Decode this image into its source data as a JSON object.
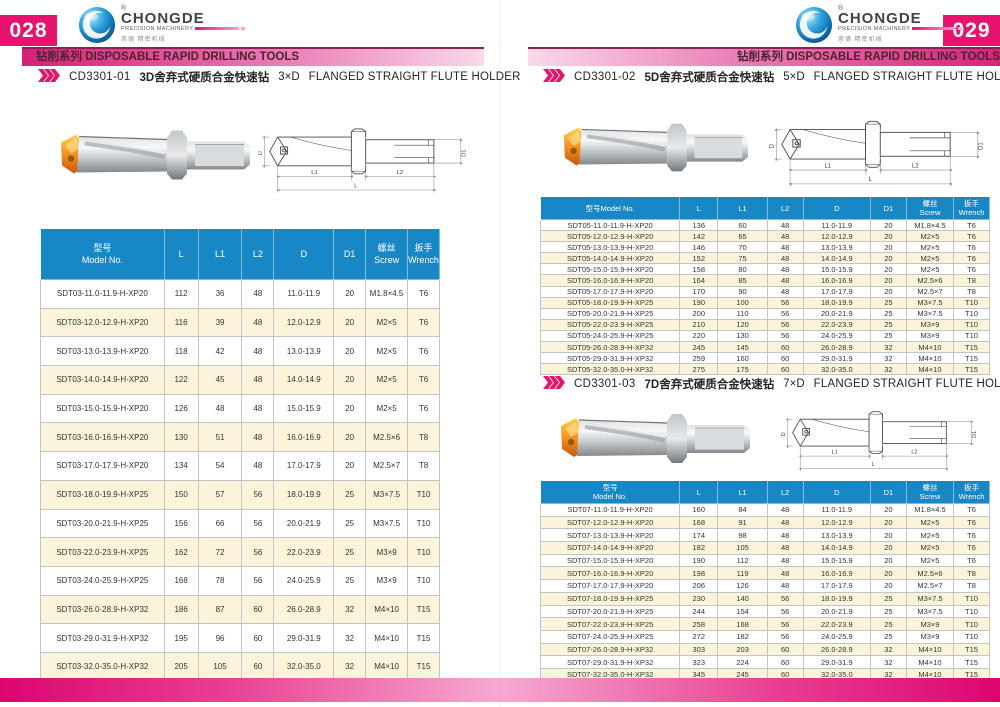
{
  "brand": {
    "name": "CHONGDE",
    "tagline": "PRECISION MACHINERY",
    "cn_name": "崇德 精密机械",
    "registered_mark": "®"
  },
  "series_bar_text": "钻削系列 DISPOSABLE RAPID DRILLING TOOLS",
  "left_page": {
    "number": "028"
  },
  "right_page": {
    "number": "029"
  },
  "products": {
    "p1": {
      "code": "CD3301-01",
      "name_cn": "3D舍弃式硬质合金快速钻",
      "size": "3×D",
      "name_en": "FLANGED STRAIGHT FLUTE HOLDER"
    },
    "p2": {
      "code": "CD3301-02",
      "name_cn": "5D舍弃式硬质合金快速钻",
      "size": "5×D",
      "name_en": "FLANGED STRAIGHT FLUTE HOLDER"
    },
    "p3": {
      "code": "CD3301-03",
      "name_cn": "7D舍弃式硬质合金快速钻",
      "size": "7×D",
      "name_en": "FLANGED STRAIGHT FLUTE HOLDER"
    }
  },
  "drawing_labels": {
    "d": "D",
    "d1": "D1",
    "l1": "L1",
    "l2": "L2",
    "l": "L"
  },
  "colors": {
    "magenta": "#e7136f",
    "table_header_blue": "#1787c5",
    "row_cream": "#fbf4da",
    "insert_orange": "#f08c1a"
  },
  "tables": {
    "t3d": {
      "headers": [
        "型号\nModel No.",
        "L",
        "L1",
        "L2",
        "D",
        "D1",
        "螺丝Screw",
        "扳手\nWrench"
      ],
      "rows": [
        [
          "SDT03-11.0-11.9-H-XP20",
          "112",
          "36",
          "48",
          "11.0-11.9",
          "20",
          "M1.8×4.5",
          "T6"
        ],
        [
          "SDT03-12.0-12.9-H-XP20",
          "116",
          "39",
          "48",
          "12.0-12.9",
          "20",
          "M2×5",
          "T6"
        ],
        [
          "SDT03-13.0-13.9-H-XP20",
          "118",
          "42",
          "48",
          "13.0-13.9",
          "20",
          "M2×5",
          "T6"
        ],
        [
          "SDT03-14.0-14.9-H-XP20",
          "122",
          "45",
          "48",
          "14.0-14.9",
          "20",
          "M2×5",
          "T6"
        ],
        [
          "SDT03-15.0-15.9-H-XP20",
          "126",
          "48",
          "48",
          "15.0-15.9",
          "20",
          "M2×5",
          "T6"
        ],
        [
          "SDT03-16.0-16.9-H-XP20",
          "130",
          "51",
          "48",
          "16.0-16.9",
          "20",
          "M2.5×6",
          "T8"
        ],
        [
          "SDT03-17.0-17.9-H-XP20",
          "134",
          "54",
          "48",
          "17.0-17.9",
          "20",
          "M2.5×7",
          "T8"
        ],
        [
          "SDT03-18.0-19.9-H-XP25",
          "150",
          "57",
          "56",
          "18.0-19.9",
          "25",
          "M3×7.5",
          "T10"
        ],
        [
          "SDT03-20.0-21.9-H-XP25",
          "156",
          "66",
          "56",
          "20.0-21.9",
          "25",
          "M3×7.5",
          "T10"
        ],
        [
          "SDT03-22.0-23.9-H-XP25",
          "162",
          "72",
          "56",
          "22.0-23.9",
          "25",
          "M3×9",
          "T10"
        ],
        [
          "SDT03-24.0-25.9-H-XP25",
          "168",
          "78",
          "56",
          "24.0-25.9",
          "25",
          "M3×9",
          "T10"
        ],
        [
          "SDT03-26.0-28.9-H-XP32",
          "186",
          "87",
          "60",
          "26.0-28.9",
          "32",
          "M4×10",
          "T15"
        ],
        [
          "SDT03-29.0-31.9-H-XP32",
          "195",
          "96",
          "60",
          "29.0-31.9",
          "32",
          "M4×10",
          "T15"
        ],
        [
          "SDT03-32.0-35.0-H-XP32",
          "205",
          "105",
          "60",
          "32.0-35.0",
          "32",
          "M4×10",
          "T15"
        ]
      ]
    },
    "t5d": {
      "headers": [
        "型号Model No.",
        "L",
        "L1",
        "L2",
        "D",
        "D1",
        "螺丝\nScrew",
        "扳手Wrench"
      ],
      "rows": [
        [
          "SDT05-11.0-11.9-H-XP20",
          "136",
          "60",
          "48",
          "11.0-11.9",
          "20",
          "M1.8×4.5",
          "T6"
        ],
        [
          "SDT05-12.0-12.9-H-XP20",
          "142",
          "65",
          "48",
          "12.0-12.9",
          "20",
          "M2×5",
          "T6"
        ],
        [
          "SDT05-13.0-13.9-H-XP20",
          "146",
          "70",
          "48",
          "13.0-13.9",
          "20",
          "M2×5",
          "T6"
        ],
        [
          "SDT05-14.0-14.9-H-XP20",
          "152",
          "75",
          "48",
          "14.0-14.9",
          "20",
          "M2×5",
          "T6"
        ],
        [
          "SDT05-15.0-15.9-H-XP20",
          "158",
          "80",
          "48",
          "15.0-15.9",
          "20",
          "M2×5",
          "T6"
        ],
        [
          "SDT05-16.0-16.9-H-XP20",
          "164",
          "85",
          "48",
          "16.0-16.9",
          "20",
          "M2.5×6",
          "T8"
        ],
        [
          "SDT05-17.0-17.9-H-XP20",
          "170",
          "90",
          "48",
          "17.0-17.9",
          "20",
          "M2.5×7",
          "T8"
        ],
        [
          "SDT05-18.0-19.9-H-XP25",
          "190",
          "100",
          "56",
          "18.0-19.9",
          "25",
          "M3×7.5",
          "T10"
        ],
        [
          "SDT05-20.0-21.9-H-XP25",
          "200",
          "110",
          "56",
          "20.0-21.9",
          "25",
          "M3×7.5",
          "T10"
        ],
        [
          "SDT05-22.0-23.9-H-XP25",
          "210",
          "120",
          "56",
          "22.0-23.9",
          "25",
          "M3×9",
          "T10"
        ],
        [
          "SDT05-24.0-25.9-H-XP25",
          "220",
          "130",
          "56",
          "24.0-25.9",
          "25",
          "M3×9",
          "T10"
        ],
        [
          "SDT05-26.0-28.9-H-XP32",
          "245",
          "145",
          "60",
          "26.0-28.9",
          "32",
          "M4×10",
          "T15"
        ],
        [
          "SDT05-29.0-31.9-H-XP32",
          "259",
          "160",
          "60",
          "29.0-31.9",
          "32",
          "M4×10",
          "T15"
        ],
        [
          "SDT05-32.0-35.0-H-XP32",
          "275",
          "175",
          "60",
          "32.0-35.0",
          "32",
          "M4×10",
          "T15"
        ]
      ]
    },
    "t7d": {
      "headers": [
        "型号\nModel No.",
        "L",
        "L1",
        "L2",
        "D",
        "D1",
        "螺丝\nScrew",
        "扳手\nWrench"
      ],
      "rows": [
        [
          "SDT07-11.0-11.9-H-XP20",
          "160",
          "84",
          "48",
          "11.0-11.9",
          "20",
          "M1.8×4.5",
          "T6"
        ],
        [
          "SDT07-12.0-12.9-H-XP20",
          "168",
          "91",
          "48",
          "12.0-12.9",
          "20",
          "M2×5",
          "T6"
        ],
        [
          "SDT07-13.0-13.9-H-XP20",
          "174",
          "98",
          "48",
          "13.0-13.9",
          "20",
          "M2×5",
          "T6"
        ],
        [
          "SDT07-14.0-14.9-H-XP20",
          "182",
          "105",
          "48",
          "14.0-14.9",
          "20",
          "M2×5",
          "T6"
        ],
        [
          "SDT07-15.0-15.9-H-XP20",
          "190",
          "112",
          "48",
          "15.0-15.9",
          "20",
          "M2×5",
          "T6"
        ],
        [
          "SDT07-16.0-16.9-H-XP20",
          "198",
          "119",
          "48",
          "16.0-16.9",
          "20",
          "M2.5×6",
          "T8"
        ],
        [
          "SDT07-17.0-17.9-H-XP20",
          "206",
          "126",
          "48",
          "17.0-17.9",
          "20",
          "M2.5×7",
          "T8"
        ],
        [
          "SDT07-18.0-19.9-H-XP25",
          "230",
          "140",
          "56",
          "18.0-19.9",
          "25",
          "M3×7.5",
          "T10"
        ],
        [
          "SDT07-20.0-21.9-H-XP25",
          "244",
          "154",
          "56",
          "20.0-21.9",
          "25",
          "M3×7.5",
          "T10"
        ],
        [
          "SDT07-22.0-23.9-H-XP25",
          "258",
          "168",
          "56",
          "22.0-23.9",
          "25",
          "M3×9",
          "T10"
        ],
        [
          "SDT07-24.0-25.9-H-XP25",
          "272",
          "182",
          "56",
          "24.0-25.9",
          "25",
          "M3×9",
          "T10"
        ],
        [
          "SDT07-26.0-28.9-H-XP32",
          "303",
          "203",
          "60",
          "26.0-28.9",
          "32",
          "M4×10",
          "T15"
        ],
        [
          "SDT07-29.0-31.9-H-XP32",
          "323",
          "224",
          "60",
          "29.0-31.9",
          "32",
          "M4×10",
          "T15"
        ],
        [
          "SDT07-32.0-35.0-H-XP32",
          "345",
          "245",
          "60",
          "32.0-35.0",
          "32",
          "M4×10",
          "T15"
        ]
      ]
    }
  }
}
